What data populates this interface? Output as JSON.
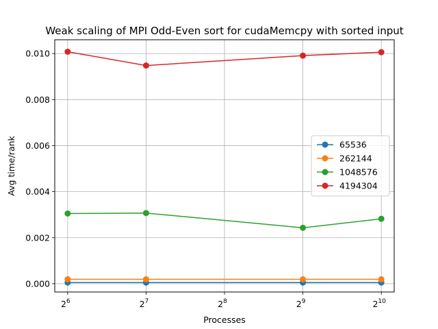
{
  "chart_data": {
    "type": "line",
    "title": "Weak scaling of MPI Odd-Even sort for cudaMemcpy with sorted input",
    "xlabel": "Processes",
    "ylabel": "Avg time/rank",
    "x_scale": "log2",
    "x": [
      64,
      128,
      512,
      1024
    ],
    "x_ticks": [
      {
        "value": 64,
        "base": "2",
        "exp": "6"
      },
      {
        "value": 128,
        "base": "2",
        "exp": "7"
      },
      {
        "value": 256,
        "base": "2",
        "exp": "8"
      },
      {
        "value": 512,
        "base": "2",
        "exp": "9"
      },
      {
        "value": 1024,
        "base": "2",
        "exp": "10"
      }
    ],
    "xlim": [
      57.1,
      1147.6
    ],
    "ylim": [
      -0.00036,
      0.0106
    ],
    "y_ticks": [
      {
        "value": 0,
        "label": "0.000"
      },
      {
        "value": 0.002,
        "label": "0.002"
      },
      {
        "value": 0.004,
        "label": "0.004"
      },
      {
        "value": 0.006,
        "label": "0.006"
      },
      {
        "value": 0.008,
        "label": "0.008"
      },
      {
        "value": 0.01,
        "label": "0.010"
      }
    ],
    "grid": true,
    "legend_position": "center-right",
    "series": [
      {
        "name": "65536",
        "color": "#1f77b4",
        "values": [
          5e-05,
          5e-05,
          5e-05,
          5e-05
        ]
      },
      {
        "name": "262144",
        "color": "#ff7f0e",
        "values": [
          0.00019,
          0.00019,
          0.00019,
          0.00019
        ]
      },
      {
        "name": "1048576",
        "color": "#2ca02c",
        "values": [
          0.00305,
          0.00307,
          0.00243,
          0.00282
        ]
      },
      {
        "name": "4194304",
        "color": "#d62728",
        "values": [
          0.01008,
          0.00948,
          0.00991,
          0.01006
        ]
      }
    ]
  }
}
